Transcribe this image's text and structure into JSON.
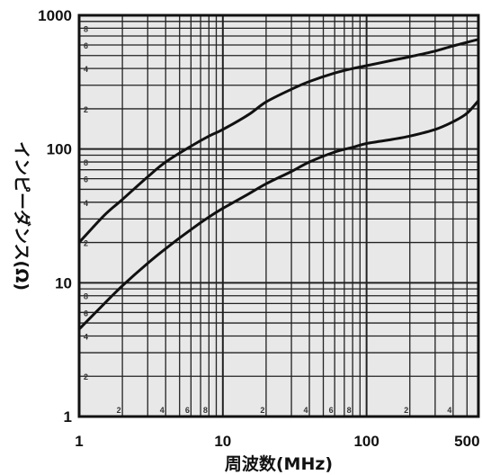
{
  "chart_data": {
    "type": "line",
    "title": "",
    "xlabel": "周波数(MHz)",
    "ylabel": "インピーダンス(Ω)",
    "x_scale": "log",
    "y_scale": "log",
    "xlim": [
      1,
      600
    ],
    "ylim": [
      1,
      1000
    ],
    "grid": true,
    "x_ticks": [
      {
        "value": 1,
        "label": "1"
      },
      {
        "value": 10,
        "label": "10"
      },
      {
        "value": 100,
        "label": "100"
      },
      {
        "value": 500,
        "label": "500"
      }
    ],
    "y_ticks": [
      {
        "value": 1,
        "label": "1"
      },
      {
        "value": 10,
        "label": "10"
      },
      {
        "value": 100,
        "label": "100"
      },
      {
        "value": 1000,
        "label": "1000"
      }
    ],
    "x_minor_labels": [
      {
        "value": 2,
        "label": "2"
      },
      {
        "value": 4,
        "label": "4"
      },
      {
        "value": 6,
        "label": "6"
      },
      {
        "value": 8,
        "label": "8"
      },
      {
        "value": 20,
        "label": "2"
      },
      {
        "value": 40,
        "label": "4"
      },
      {
        "value": 60,
        "label": "6"
      },
      {
        "value": 80,
        "label": "8"
      },
      {
        "value": 200,
        "label": "2"
      },
      {
        "value": 400,
        "label": "4"
      }
    ],
    "y_minor_labels": [
      {
        "value": 2,
        "label": "2"
      },
      {
        "value": 4,
        "label": "4"
      },
      {
        "value": 6,
        "label": "6"
      },
      {
        "value": 8,
        "label": "8"
      },
      {
        "value": 20,
        "label": "2"
      },
      {
        "value": 40,
        "label": "4"
      },
      {
        "value": 60,
        "label": "6"
      },
      {
        "value": 80,
        "label": "8"
      },
      {
        "value": 200,
        "label": "2"
      },
      {
        "value": 400,
        "label": "4"
      },
      {
        "value": 600,
        "label": "6"
      },
      {
        "value": 800,
        "label": "8"
      }
    ],
    "series": [
      {
        "x": [
          1,
          1.5,
          2,
          3,
          4,
          6,
          8,
          10,
          15,
          20,
          30,
          40,
          60,
          80,
          100,
          150,
          200,
          300,
          400,
          600
        ],
        "y": [
          20,
          32,
          42,
          62,
          80,
          105,
          125,
          140,
          180,
          225,
          280,
          320,
          370,
          400,
          420,
          460,
          490,
          540,
          590,
          660
        ]
      },
      {
        "x": [
          1,
          1.5,
          2,
          3,
          4,
          6,
          8,
          10,
          15,
          20,
          30,
          40,
          60,
          80,
          100,
          150,
          200,
          300,
          400,
          500,
          600
        ],
        "y": [
          4.5,
          7,
          9.5,
          14,
          18,
          25,
          31,
          36,
          46,
          55,
          68,
          80,
          95,
          103,
          110,
          118,
          125,
          140,
          160,
          185,
          230
        ]
      }
    ]
  }
}
